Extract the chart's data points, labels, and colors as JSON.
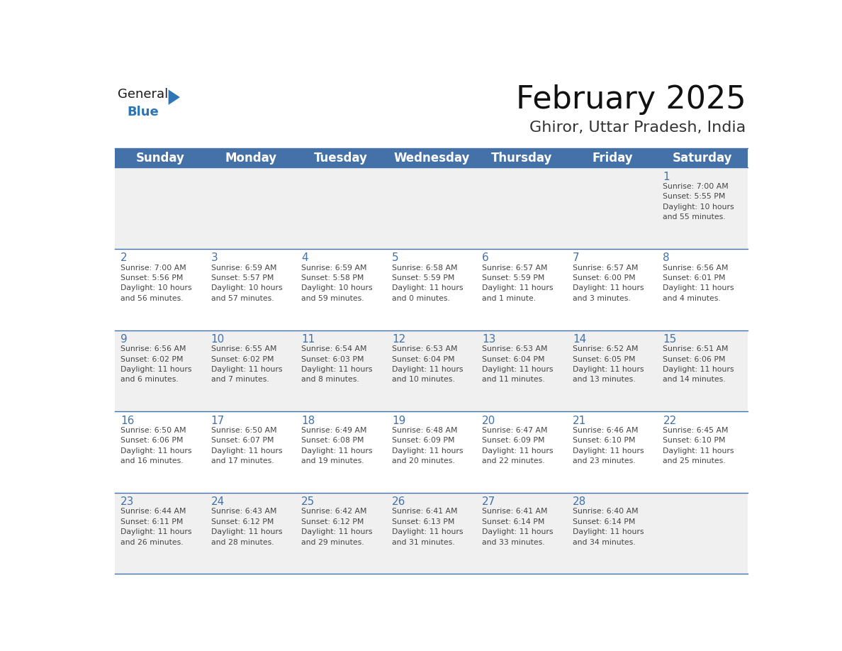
{
  "title": "February 2025",
  "subtitle": "Ghiror, Uttar Pradesh, India",
  "header_bg": "#4472A8",
  "header_text_color": "#FFFFFF",
  "days_of_week": [
    "Sunday",
    "Monday",
    "Tuesday",
    "Wednesday",
    "Thursday",
    "Friday",
    "Saturday"
  ],
  "row_bg_odd": "#F0F0F0",
  "row_bg_even": "#FFFFFF",
  "cell_text_color": "#444444",
  "border_color": "#4472A8",
  "logo_general_color": "#1a1a1a",
  "logo_blue_color": "#2E75B6",
  "weeks": [
    [
      {
        "day": null,
        "info": null
      },
      {
        "day": null,
        "info": null
      },
      {
        "day": null,
        "info": null
      },
      {
        "day": null,
        "info": null
      },
      {
        "day": null,
        "info": null
      },
      {
        "day": null,
        "info": null
      },
      {
        "day": 1,
        "info": "Sunrise: 7:00 AM\nSunset: 5:55 PM\nDaylight: 10 hours\nand 55 minutes."
      }
    ],
    [
      {
        "day": 2,
        "info": "Sunrise: 7:00 AM\nSunset: 5:56 PM\nDaylight: 10 hours\nand 56 minutes."
      },
      {
        "day": 3,
        "info": "Sunrise: 6:59 AM\nSunset: 5:57 PM\nDaylight: 10 hours\nand 57 minutes."
      },
      {
        "day": 4,
        "info": "Sunrise: 6:59 AM\nSunset: 5:58 PM\nDaylight: 10 hours\nand 59 minutes."
      },
      {
        "day": 5,
        "info": "Sunrise: 6:58 AM\nSunset: 5:59 PM\nDaylight: 11 hours\nand 0 minutes."
      },
      {
        "day": 6,
        "info": "Sunrise: 6:57 AM\nSunset: 5:59 PM\nDaylight: 11 hours\nand 1 minute."
      },
      {
        "day": 7,
        "info": "Sunrise: 6:57 AM\nSunset: 6:00 PM\nDaylight: 11 hours\nand 3 minutes."
      },
      {
        "day": 8,
        "info": "Sunrise: 6:56 AM\nSunset: 6:01 PM\nDaylight: 11 hours\nand 4 minutes."
      }
    ],
    [
      {
        "day": 9,
        "info": "Sunrise: 6:56 AM\nSunset: 6:02 PM\nDaylight: 11 hours\nand 6 minutes."
      },
      {
        "day": 10,
        "info": "Sunrise: 6:55 AM\nSunset: 6:02 PM\nDaylight: 11 hours\nand 7 minutes."
      },
      {
        "day": 11,
        "info": "Sunrise: 6:54 AM\nSunset: 6:03 PM\nDaylight: 11 hours\nand 8 minutes."
      },
      {
        "day": 12,
        "info": "Sunrise: 6:53 AM\nSunset: 6:04 PM\nDaylight: 11 hours\nand 10 minutes."
      },
      {
        "day": 13,
        "info": "Sunrise: 6:53 AM\nSunset: 6:04 PM\nDaylight: 11 hours\nand 11 minutes."
      },
      {
        "day": 14,
        "info": "Sunrise: 6:52 AM\nSunset: 6:05 PM\nDaylight: 11 hours\nand 13 minutes."
      },
      {
        "day": 15,
        "info": "Sunrise: 6:51 AM\nSunset: 6:06 PM\nDaylight: 11 hours\nand 14 minutes."
      }
    ],
    [
      {
        "day": 16,
        "info": "Sunrise: 6:50 AM\nSunset: 6:06 PM\nDaylight: 11 hours\nand 16 minutes."
      },
      {
        "day": 17,
        "info": "Sunrise: 6:50 AM\nSunset: 6:07 PM\nDaylight: 11 hours\nand 17 minutes."
      },
      {
        "day": 18,
        "info": "Sunrise: 6:49 AM\nSunset: 6:08 PM\nDaylight: 11 hours\nand 19 minutes."
      },
      {
        "day": 19,
        "info": "Sunrise: 6:48 AM\nSunset: 6:09 PM\nDaylight: 11 hours\nand 20 minutes."
      },
      {
        "day": 20,
        "info": "Sunrise: 6:47 AM\nSunset: 6:09 PM\nDaylight: 11 hours\nand 22 minutes."
      },
      {
        "day": 21,
        "info": "Sunrise: 6:46 AM\nSunset: 6:10 PM\nDaylight: 11 hours\nand 23 minutes."
      },
      {
        "day": 22,
        "info": "Sunrise: 6:45 AM\nSunset: 6:10 PM\nDaylight: 11 hours\nand 25 minutes."
      }
    ],
    [
      {
        "day": 23,
        "info": "Sunrise: 6:44 AM\nSunset: 6:11 PM\nDaylight: 11 hours\nand 26 minutes."
      },
      {
        "day": 24,
        "info": "Sunrise: 6:43 AM\nSunset: 6:12 PM\nDaylight: 11 hours\nand 28 minutes."
      },
      {
        "day": 25,
        "info": "Sunrise: 6:42 AM\nSunset: 6:12 PM\nDaylight: 11 hours\nand 29 minutes."
      },
      {
        "day": 26,
        "info": "Sunrise: 6:41 AM\nSunset: 6:13 PM\nDaylight: 11 hours\nand 31 minutes."
      },
      {
        "day": 27,
        "info": "Sunrise: 6:41 AM\nSunset: 6:14 PM\nDaylight: 11 hours\nand 33 minutes."
      },
      {
        "day": 28,
        "info": "Sunrise: 6:40 AM\nSunset: 6:14 PM\nDaylight: 11 hours\nand 34 minutes."
      },
      {
        "day": null,
        "info": null
      }
    ]
  ]
}
